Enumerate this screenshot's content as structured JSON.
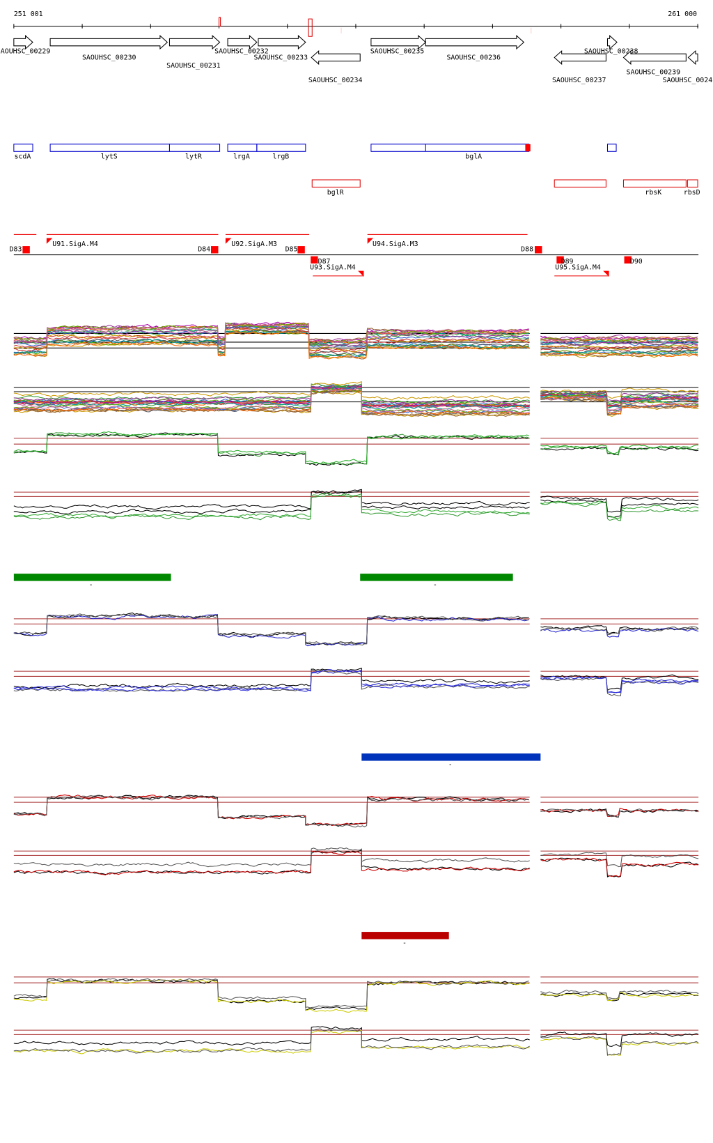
{
  "header": {
    "start": "251 001",
    "end": "261 000"
  },
  "genes": [
    {
      "label": "AOUHSC_00229"
    },
    {
      "label": "SAOUHSC_00230"
    },
    {
      "label": "SAOUHSC_00231"
    },
    {
      "label": "SAOUHSC_00232"
    },
    {
      "label": "SAOUHSC_00233"
    },
    {
      "label": "SAOUHSC_00234"
    },
    {
      "label": "SAOUHSC_00235"
    },
    {
      "label": "SAOUHSC_00236"
    },
    {
      "label": "SAOUHSC_00237"
    },
    {
      "label": "SAOUHSC_00238"
    },
    {
      "label": "SAOUHSC_00239"
    },
    {
      "label": "SAOUHSC_0024"
    }
  ],
  "operons": [
    {
      "label": "scdA"
    },
    {
      "label": "lytS"
    },
    {
      "label": "lytR"
    },
    {
      "label": "lrgA"
    },
    {
      "label": "lrgB"
    },
    {
      "label": "bglA"
    },
    {
      "label": "bglR"
    },
    {
      "label": "rbsK"
    },
    {
      "label": "rbsD"
    }
  ],
  "features": [
    {
      "label": "D83"
    },
    {
      "label": "U91.SigA.M4"
    },
    {
      "label": "D84"
    },
    {
      "label": "U92.SigA.M3"
    },
    {
      "label": "D85"
    },
    {
      "label": "D87"
    },
    {
      "label": "U93.SigA.M4"
    },
    {
      "label": "U94.SigA.M3"
    },
    {
      "label": "D88"
    },
    {
      "label": "D89"
    },
    {
      "label": "U95.SigA.M4"
    },
    {
      "label": "D90"
    }
  ],
  "bars": [
    {
      "label": "-"
    },
    {
      "label": "-"
    },
    {
      "label": "-"
    },
    {
      "label": "-"
    }
  ]
}
